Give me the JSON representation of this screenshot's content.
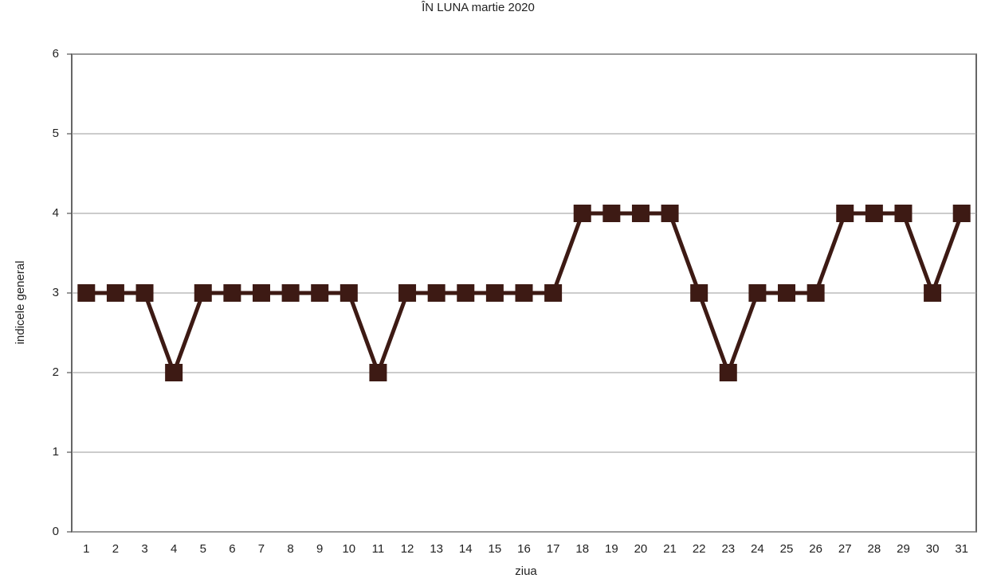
{
  "chart_data": {
    "type": "line",
    "title": "ÎN LUNA  martie  2020",
    "x_label": "ziua",
    "y_label": "indicele general",
    "categories": [
      1,
      2,
      3,
      4,
      5,
      6,
      7,
      8,
      9,
      10,
      11,
      12,
      13,
      14,
      15,
      16,
      17,
      18,
      19,
      20,
      21,
      22,
      23,
      24,
      25,
      26,
      27,
      28,
      29,
      30,
      31
    ],
    "series": [
      {
        "name": "indicele general",
        "color": "#3d1a14",
        "values": [
          3,
          3,
          3,
          2,
          3,
          3,
          3,
          3,
          3,
          3,
          2,
          3,
          3,
          3,
          3,
          3,
          3,
          4,
          4,
          4,
          4,
          3,
          2,
          3,
          3,
          3,
          4,
          4,
          4,
          3,
          4
        ]
      }
    ],
    "ylim": [
      0,
      6
    ],
    "yticks": [
      0,
      1,
      2,
      3,
      4,
      5,
      6
    ],
    "grid": true
  }
}
